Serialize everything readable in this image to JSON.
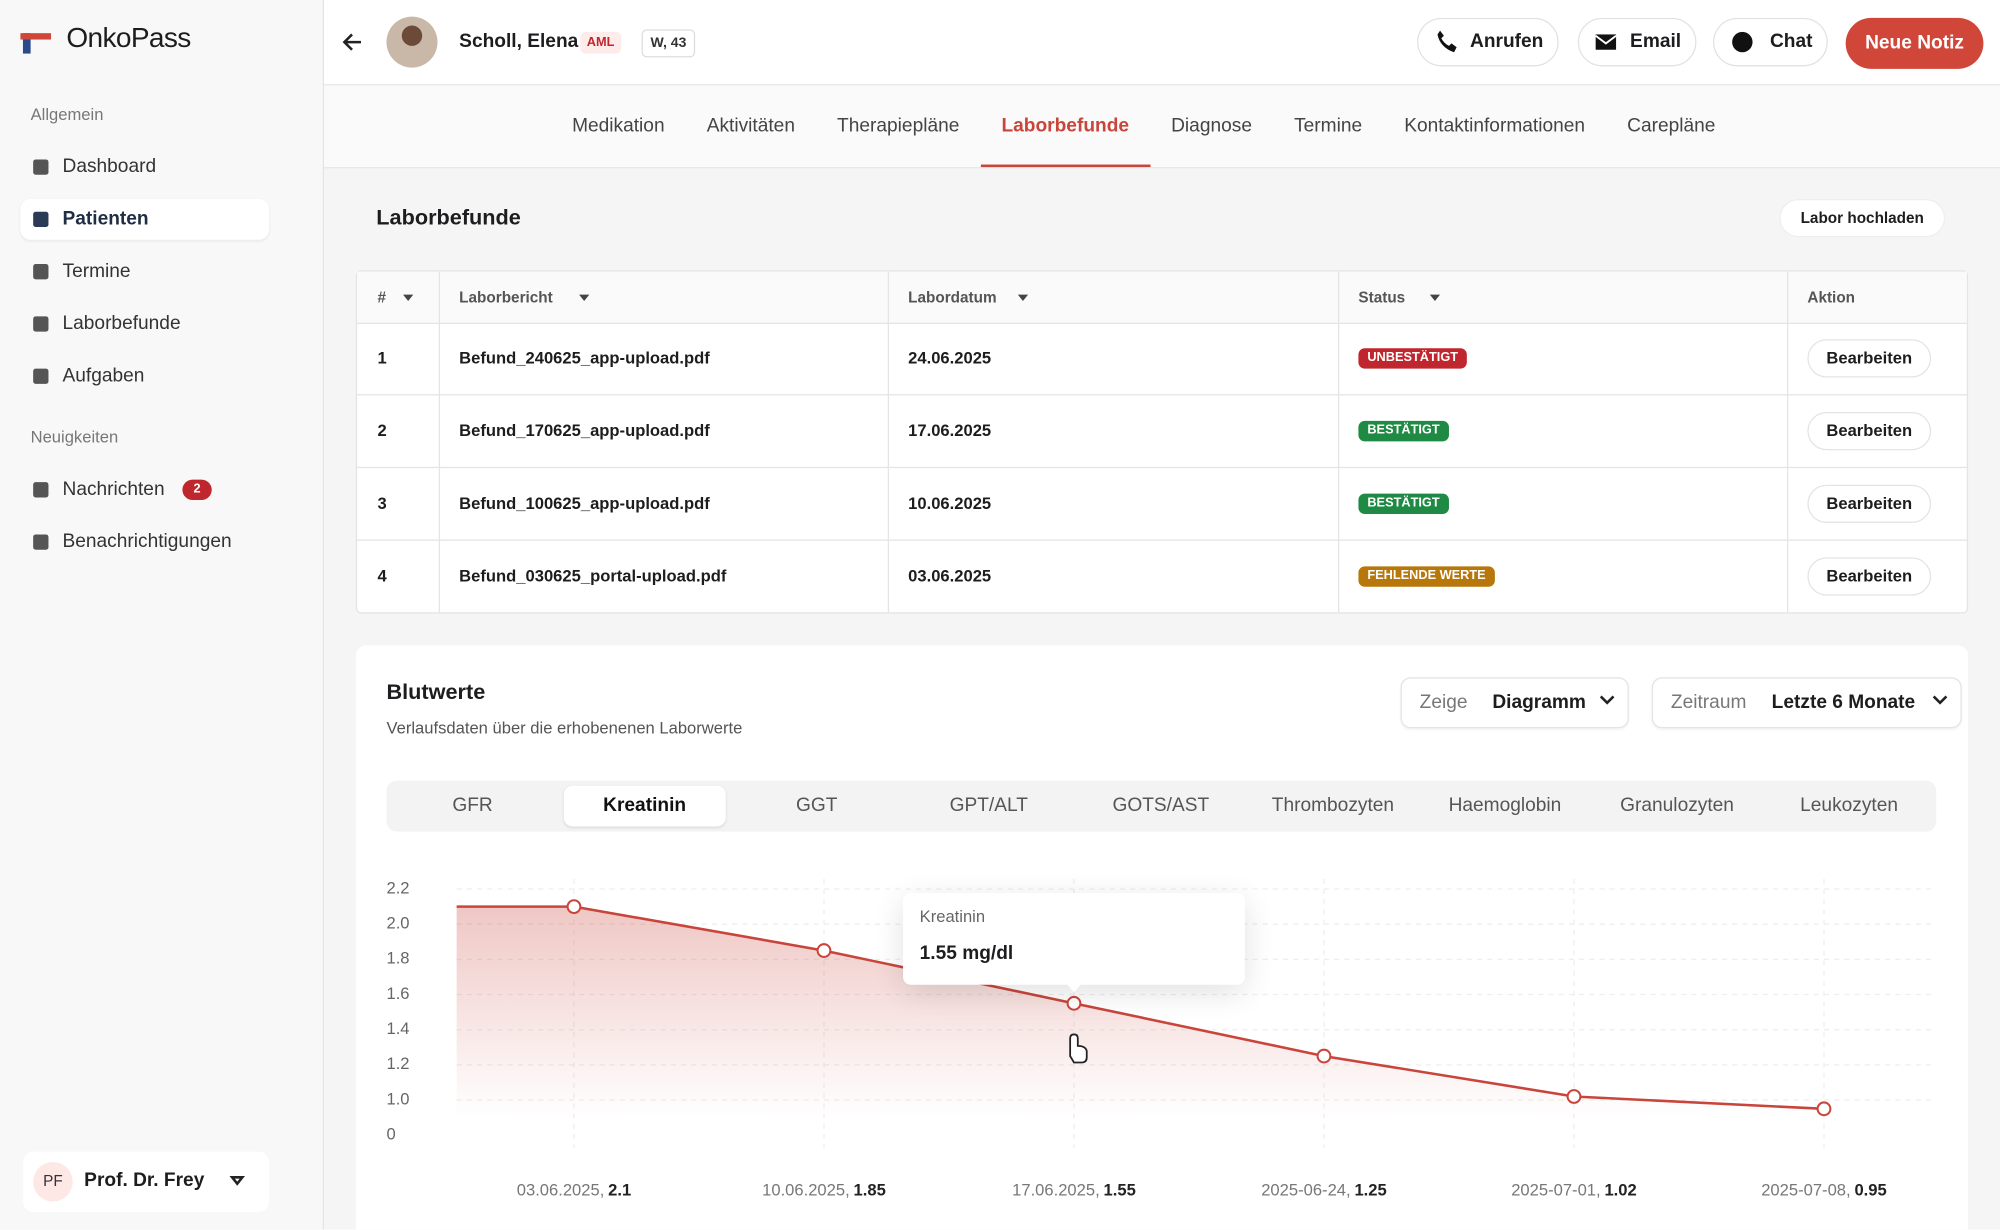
{
  "app": {
    "brand": "OnkoPass"
  },
  "sidebar": {
    "sections": [
      {
        "title": "Allgemein",
        "items": [
          {
            "label": "Dashboard"
          },
          {
            "label": "Patienten",
            "active": true
          },
          {
            "label": "Termine"
          },
          {
            "label": "Laborbefunde"
          },
          {
            "label": "Aufgaben"
          }
        ]
      },
      {
        "title": "Neuigkeiten",
        "items": [
          {
            "label": "Nachrichten",
            "badge": 2
          },
          {
            "label": "Benachrichtigungen"
          }
        ]
      }
    ],
    "user": {
      "initials": "PF",
      "name": "Prof. Dr. Frey"
    }
  },
  "header": {
    "patient": "Scholl, Elena",
    "tag": "AML",
    "info": "W, 43",
    "actions": [
      "Anrufen",
      "Email",
      "Chat"
    ],
    "primary": "Neue Notiz"
  },
  "tabs": {
    "items": [
      "Medikation",
      "Aktivitäten",
      "Therapiepläne",
      "Laborbefunde",
      "Diagnose",
      "Termine",
      "Kontaktinformationen",
      "Carepläne"
    ],
    "active": 3
  },
  "lab": {
    "title": "Laborbefunde",
    "upload": "Labor hochladen",
    "columns": [
      "#",
      "Laborbericht",
      "Labordatum",
      "Status",
      "Aktion"
    ],
    "rows": [
      {
        "n": 1,
        "file": "Befund_240625_app-upload.pdf",
        "date": "24.06.2025",
        "status": "UNBESTÄTIGT",
        "status_color": "#c0262d",
        "action": "Bearbeiten"
      },
      {
        "n": 2,
        "file": "Befund_170625_app-upload.pdf",
        "date": "17.06.2025",
        "status": "BESTÄTIGT",
        "status_color": "#1f8a43",
        "action": "Bearbeiten"
      },
      {
        "n": 3,
        "file": "Befund_100625_app-upload.pdf",
        "date": "10.06.2025",
        "status": "BESTÄTIGT",
        "status_color": "#1f8a43",
        "action": "Bearbeiten"
      },
      {
        "n": 4,
        "file": "Befund_030625_portal-upload.pdf",
        "date": "03.06.2025",
        "status": "FEHLENDE WERTE",
        "status_color": "#b7770b",
        "action": "Bearbeiten"
      }
    ]
  },
  "blood": {
    "title": "Blutwerte",
    "subtitle": "Verlaufsdaten über die erhobenenen Laborwerte",
    "view_label": "Zeige",
    "view": "Diagramm",
    "range_label": "Zeitraum",
    "range": "Letzte 6 Monate",
    "tabs": [
      "GFR",
      "Kreatinin",
      "GGT",
      "GPT/ALT",
      "GOTS/AST",
      "Thrombozyten",
      "Haemoglobin",
      "Granulozyten",
      "Leukozyten"
    ],
    "active_tab": 1
  },
  "chart_data": {
    "type": "area",
    "categories": [
      "03.06.2025,",
      "10.06.2025,",
      "17.06.2025,",
      "2025-06-24,",
      "2025-07-01,",
      "2025-07-08,"
    ],
    "values": [
      2.1,
      1.85,
      1.55,
      1.25,
      1.02,
      0.95
    ],
    "color": "#c9453b",
    "ylim": [
      0.8,
      2.2
    ],
    "yticks": [
      {
        "value": 1,
        "label": "1.0"
      },
      1.2,
      1.4,
      1.6,
      1.8,
      {
        "value": 2,
        "label": "2.0"
      },
      2.2
    ],
    "y_break_label": "0",
    "grid": true,
    "tooltip": {
      "index": 2,
      "title": "Kreatinin",
      "value_label": "1.55 mg/dl"
    }
  }
}
